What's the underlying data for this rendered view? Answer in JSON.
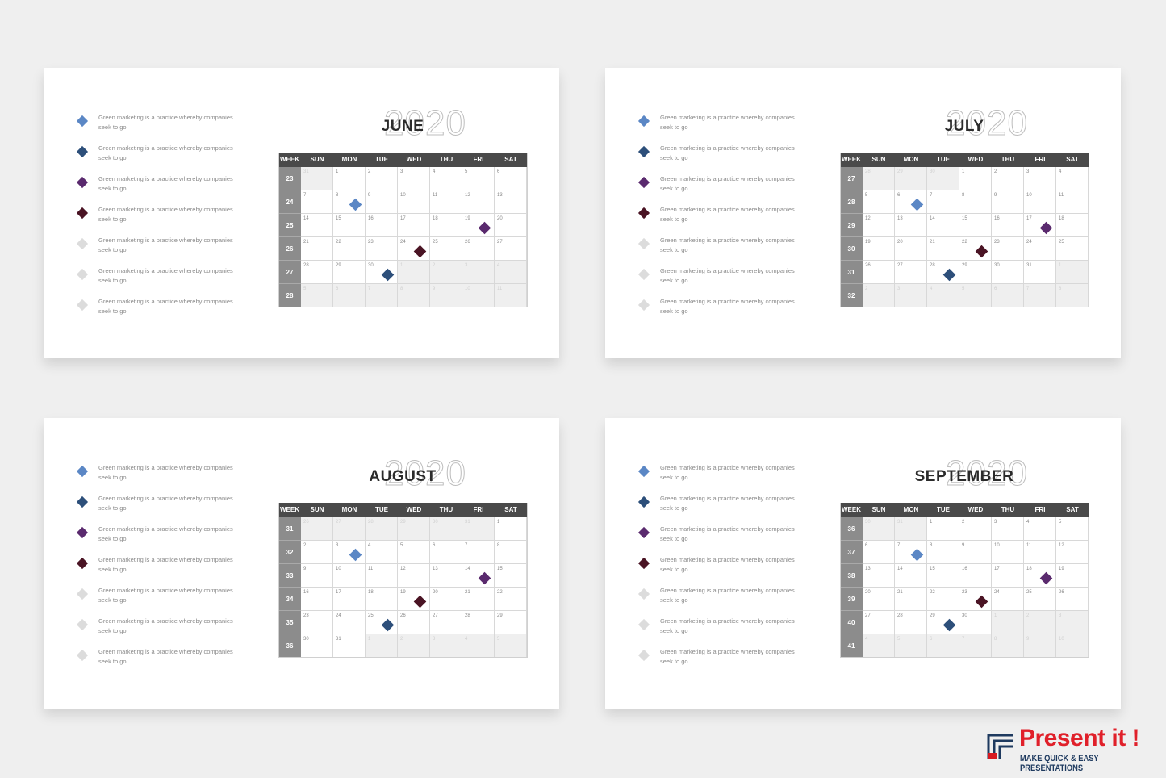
{
  "legend": [
    {
      "text": "Green marketing is a practice whereby companies seek to go",
      "color": "#5b87c5"
    },
    {
      "text": "Green marketing is a practice whereby companies seek to go",
      "color": "#2d4f7a"
    },
    {
      "text": "Green marketing is a practice whereby companies seek to go",
      "color": "#5a2a6e"
    },
    {
      "text": "Green marketing is a practice whereby companies seek to go",
      "color": "#4a1424"
    },
    {
      "text": "Green marketing is a practice whereby companies seek to go",
      "color": "#dcdcdc"
    },
    {
      "text": "Green marketing is a practice whereby companies seek to go",
      "color": "#dcdcdc"
    },
    {
      "text": "Green marketing is a practice whereby companies seek to go",
      "color": "#dcdcdc"
    }
  ],
  "week_header": "WEEK",
  "weekdays": [
    "SUN",
    "MON",
    "TUE",
    "WED",
    "THU",
    "FRI",
    "SAT"
  ],
  "slides": [
    {
      "month": "JUNE",
      "year": "2020",
      "rows": [
        {
          "week": 23,
          "days": [
            31,
            1,
            2,
            3,
            4,
            5,
            6
          ]
        },
        {
          "week": 24,
          "days": [
            7,
            8,
            9,
            10,
            11,
            12,
            13
          ]
        },
        {
          "week": 25,
          "days": [
            14,
            15,
            16,
            17,
            18,
            19,
            20
          ]
        },
        {
          "week": 26,
          "days": [
            21,
            22,
            23,
            24,
            25,
            26,
            27
          ]
        },
        {
          "week": 27,
          "days": [
            28,
            29,
            30,
            1,
            2,
            3,
            4
          ]
        },
        {
          "week": 28,
          "days": [
            5,
            6,
            7,
            8,
            9,
            10,
            11
          ]
        }
      ],
      "markers": [
        {
          "day": 8,
          "color": "#5b87c5"
        },
        {
          "day": 19,
          "color": "#5a2a6e"
        },
        {
          "day": 24,
          "color": "#4a1424"
        },
        {
          "day": 30,
          "color": "#2d4f7a"
        }
      ]
    },
    {
      "month": "JULY",
      "year": "2020",
      "rows": [
        {
          "week": 27,
          "days": [
            28,
            29,
            30,
            1,
            2,
            3,
            4
          ]
        },
        {
          "week": 28,
          "days": [
            5,
            6,
            7,
            8,
            9,
            10,
            11
          ]
        },
        {
          "week": 29,
          "days": [
            12,
            13,
            14,
            15,
            16,
            17,
            18
          ]
        },
        {
          "week": 30,
          "days": [
            19,
            20,
            21,
            22,
            23,
            24,
            25
          ]
        },
        {
          "week": 31,
          "days": [
            26,
            27,
            28,
            29,
            30,
            31,
            1
          ]
        },
        {
          "week": 32,
          "days": [
            2,
            3,
            4,
            5,
            6,
            7,
            8
          ]
        }
      ],
      "markers": [
        {
          "day": 6,
          "color": "#5b87c5"
        },
        {
          "day": 17,
          "color": "#5a2a6e"
        },
        {
          "day": 22,
          "color": "#4a1424"
        },
        {
          "day": 28,
          "color": "#2d4f7a"
        }
      ]
    },
    {
      "month": "AUGUST",
      "year": "2020",
      "rows": [
        {
          "week": 31,
          "days": [
            26,
            27,
            28,
            29,
            30,
            31,
            1
          ]
        },
        {
          "week": 32,
          "days": [
            2,
            3,
            4,
            5,
            6,
            7,
            8
          ]
        },
        {
          "week": 33,
          "days": [
            9,
            10,
            11,
            12,
            13,
            14,
            15
          ]
        },
        {
          "week": 34,
          "days": [
            16,
            17,
            18,
            19,
            20,
            21,
            22
          ]
        },
        {
          "week": 35,
          "days": [
            23,
            24,
            25,
            26,
            27,
            28,
            29
          ]
        },
        {
          "week": 36,
          "days": [
            30,
            31,
            1,
            2,
            3,
            4,
            5
          ]
        }
      ],
      "markers": [
        {
          "day": 3,
          "color": "#5b87c5"
        },
        {
          "day": 14,
          "color": "#5a2a6e"
        },
        {
          "day": 19,
          "color": "#4a1424"
        },
        {
          "day": 25,
          "color": "#2d4f7a"
        }
      ]
    },
    {
      "month": "SEPTEMBER",
      "year": "2020",
      "rows": [
        {
          "week": 36,
          "days": [
            30,
            31,
            1,
            2,
            3,
            4,
            5
          ]
        },
        {
          "week": 37,
          "days": [
            6,
            7,
            8,
            9,
            10,
            11,
            12
          ]
        },
        {
          "week": 38,
          "days": [
            13,
            14,
            15,
            16,
            17,
            18,
            19
          ]
        },
        {
          "week": 39,
          "days": [
            20,
            21,
            22,
            23,
            24,
            25,
            26
          ]
        },
        {
          "week": 40,
          "days": [
            27,
            28,
            29,
            30,
            1,
            2,
            3
          ]
        },
        {
          "week": 41,
          "days": [
            4,
            5,
            6,
            7,
            8,
            9,
            10
          ]
        }
      ],
      "markers": [
        {
          "day": 7,
          "color": "#5b87c5"
        },
        {
          "day": 18,
          "color": "#5a2a6e"
        },
        {
          "day": 23,
          "color": "#4a1424"
        },
        {
          "day": 29,
          "color": "#2d4f7a"
        }
      ]
    }
  ],
  "logo": {
    "name": "Present it !",
    "tagline": "MAKE QUICK & EASY PRESENTATIONS"
  }
}
